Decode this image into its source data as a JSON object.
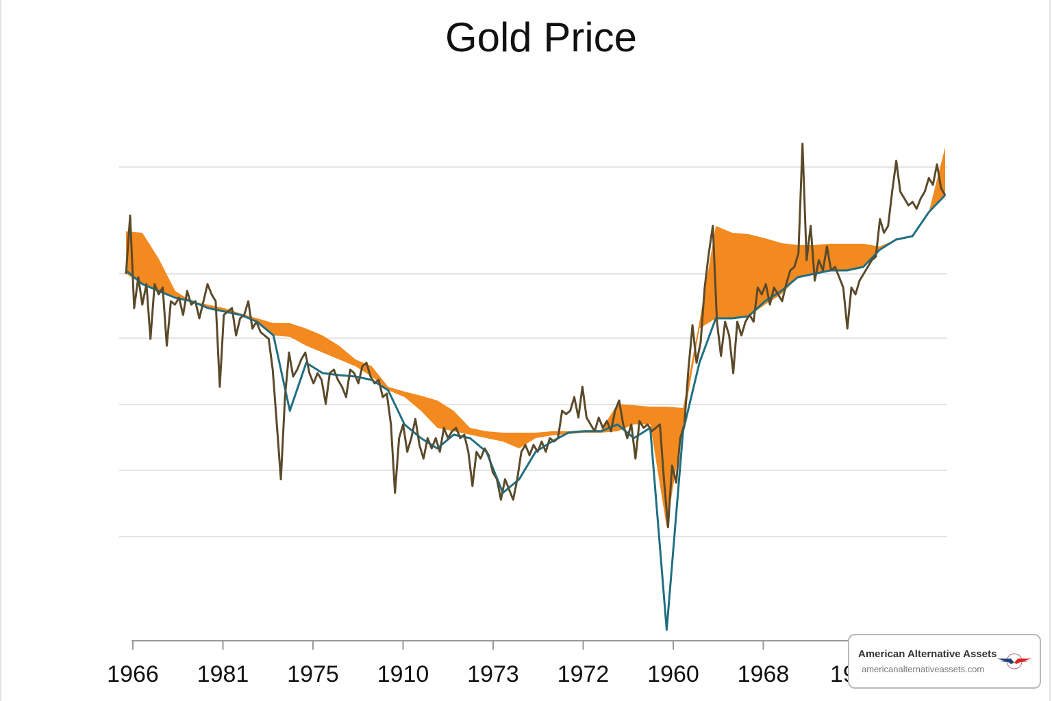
{
  "chart_data": {
    "type": "line",
    "title": "Gold Price",
    "xlabel": "",
    "ylabel": "",
    "x_tick_labels": [
      "1966",
      "1981",
      "1975",
      "1910",
      "1973",
      "1972",
      "1960",
      "1968",
      "19"
    ],
    "y_tick_labels": [],
    "ylim": [
      0,
      93.6
    ],
    "gridlines": [
      69.2,
      53.6,
      44.2,
      34.5,
      24.9,
      15.2
    ],
    "grid": true,
    "legend": "none",
    "colors": {
      "price": "#5a4a2a",
      "average": "#1f6f82",
      "band": "#f28a20",
      "grid": "#e4e4e4",
      "axis": "#999999"
    },
    "series": [
      {
        "role": "price",
        "values": [
          53.6,
          62.1,
          48.6,
          53.1,
          49.1,
          52.1,
          44.1,
          52.1,
          50.6,
          51.6,
          43.1,
          49.6,
          49.1,
          50.1,
          47.6,
          51.1,
          49.1,
          49.6,
          47.1,
          49.6,
          52.1,
          50.6,
          49.6,
          37.1,
          47.6,
          48.1,
          48.6,
          44.6,
          47.1,
          47.6,
          49.6,
          45.6,
          46.6,
          45.1,
          44.6,
          44.1,
          39.6,
          31.6,
          23.6,
          35.6,
          42.1,
          38.6,
          39.6,
          41.1,
          42.1,
          39.1,
          37.6,
          39.1,
          38.1,
          34.6,
          39.1,
          39.6,
          38.1,
          37.1,
          35.6,
          39.6,
          39.1,
          37.6,
          40.1,
          40.6,
          38.6,
          37.6,
          38.1,
          35.6,
          36.1,
          31.6,
          21.6,
          29.6,
          31.6,
          27.6,
          29.6,
          32.4,
          28.6,
          26.6,
          29.6,
          28.1,
          29.6,
          27.6,
          31.1,
          29.6,
          30.6,
          31.1,
          29.6,
          30.1,
          27.6,
          22.6,
          27.6,
          26.6,
          28.1,
          27.1,
          24.6,
          23.6,
          20.6,
          23.6,
          22.1,
          20.6,
          23.6,
          27.6,
          28.6,
          27.1,
          28.6,
          27.6,
          29.1,
          27.6,
          29.6,
          29.1,
          29.6,
          33.6,
          33.1,
          33.6,
          35.6,
          32.6,
          37.1,
          32.6,
          31.6,
          30.6,
          32.6,
          31.1,
          32.1,
          30.6,
          33.6,
          35.1,
          31.6,
          29.6,
          31.6,
          26.6,
          32.1,
          31.1,
          31.6,
          30.6,
          31.1,
          31.6,
          23.6,
          16.6,
          25.6,
          23.1,
          29.6,
          31.6,
          39.6,
          46.1,
          40.6,
          43.6,
          51.6,
          56.6,
          60.6,
          46.6,
          41.6,
          46.6,
          44.6,
          39.1,
          46.6,
          44.6,
          46.6,
          47.6,
          46.6,
          51.6,
          50.6,
          52.1,
          49.1,
          51.6,
          50.6,
          49.6,
          52.1,
          54.1,
          54.6,
          56.6,
          72.6,
          55.6,
          60.6,
          52.6,
          55.6,
          54.1,
          57.6,
          54.1,
          54.6,
          53.1,
          51.6,
          45.6,
          51.6,
          50.6,
          52.6,
          53.6,
          54.6,
          55.6,
          56.1,
          61.6,
          59.6,
          60.6,
          65.6,
          70.1,
          65.6,
          64.6,
          63.6,
          64.1,
          63.1,
          64.6,
          65.6,
          67.6,
          66.6,
          69.6,
          66.1,
          65.1
        ]
      },
      {
        "role": "average",
        "values": [
          54.1,
          52.1,
          51.1,
          50.1,
          49.6,
          48.6,
          48.1,
          47.6,
          46.6,
          44.6,
          33.6,
          40.6,
          39.1,
          38.8,
          38.6,
          38.1,
          36.6,
          31.6,
          29.6,
          28.1,
          30.1,
          29.6,
          27.6,
          21.6,
          23.6,
          27.6,
          29.1,
          30.4,
          30.6,
          30.6,
          31.6,
          29.6,
          31.1,
          1.6,
          30.6,
          40.6,
          47.1,
          47.1,
          47.4,
          49.6,
          51.1,
          53.1,
          53.6,
          54.1,
          54.1,
          54.6,
          57.1,
          58.6,
          59.1,
          62.6,
          65.1
        ]
      }
    ],
    "band": {
      "upper": [
        59.8,
        59.6,
        55.8,
        51.1,
        49.6,
        49.1,
        48.6,
        47.8,
        47.1,
        46.4,
        46.4,
        45.6,
        44.6,
        43.1,
        41.1,
        40.1,
        37.1,
        36.4,
        35.8,
        35.1,
        33.6,
        31.1,
        30.6,
        30.4,
        30.4,
        30.4,
        30.6,
        30.6,
        30.8,
        30.8,
        34.6,
        34.4,
        34.2,
        34.2,
        34.0,
        46.6,
        60.6,
        59.6,
        59.4,
        58.8,
        58.1,
        57.8,
        57.8,
        58.0,
        58.0,
        58.0,
        57.6,
        58.6,
        59.1,
        62.6,
        72.1
      ],
      "lower": [
        53.6,
        52.1,
        51.1,
        50.1,
        49.6,
        48.6,
        48.1,
        47.6,
        46.6,
        44.6,
        44.4,
        43.1,
        42.1,
        41.1,
        40.1,
        38.6,
        36.6,
        35.6,
        33.6,
        31.1,
        30.6,
        30.1,
        29.6,
        29.1,
        28.1,
        29.6,
        30.0,
        30.2,
        30.4,
        30.4,
        30.6,
        31.6,
        31.6,
        16.6,
        31.6,
        45.6,
        47.1,
        47.1,
        47.4,
        49.1,
        50.6,
        53.1,
        53.6,
        54.1,
        54.1,
        54.6,
        57.1,
        58.6,
        59.1,
        62.6,
        65.1
      ]
    }
  },
  "badge": {
    "name": "American Alternative Assets",
    "url": "americanalternativeassets.com",
    "logo_icon": "eagle-wings-logo"
  }
}
